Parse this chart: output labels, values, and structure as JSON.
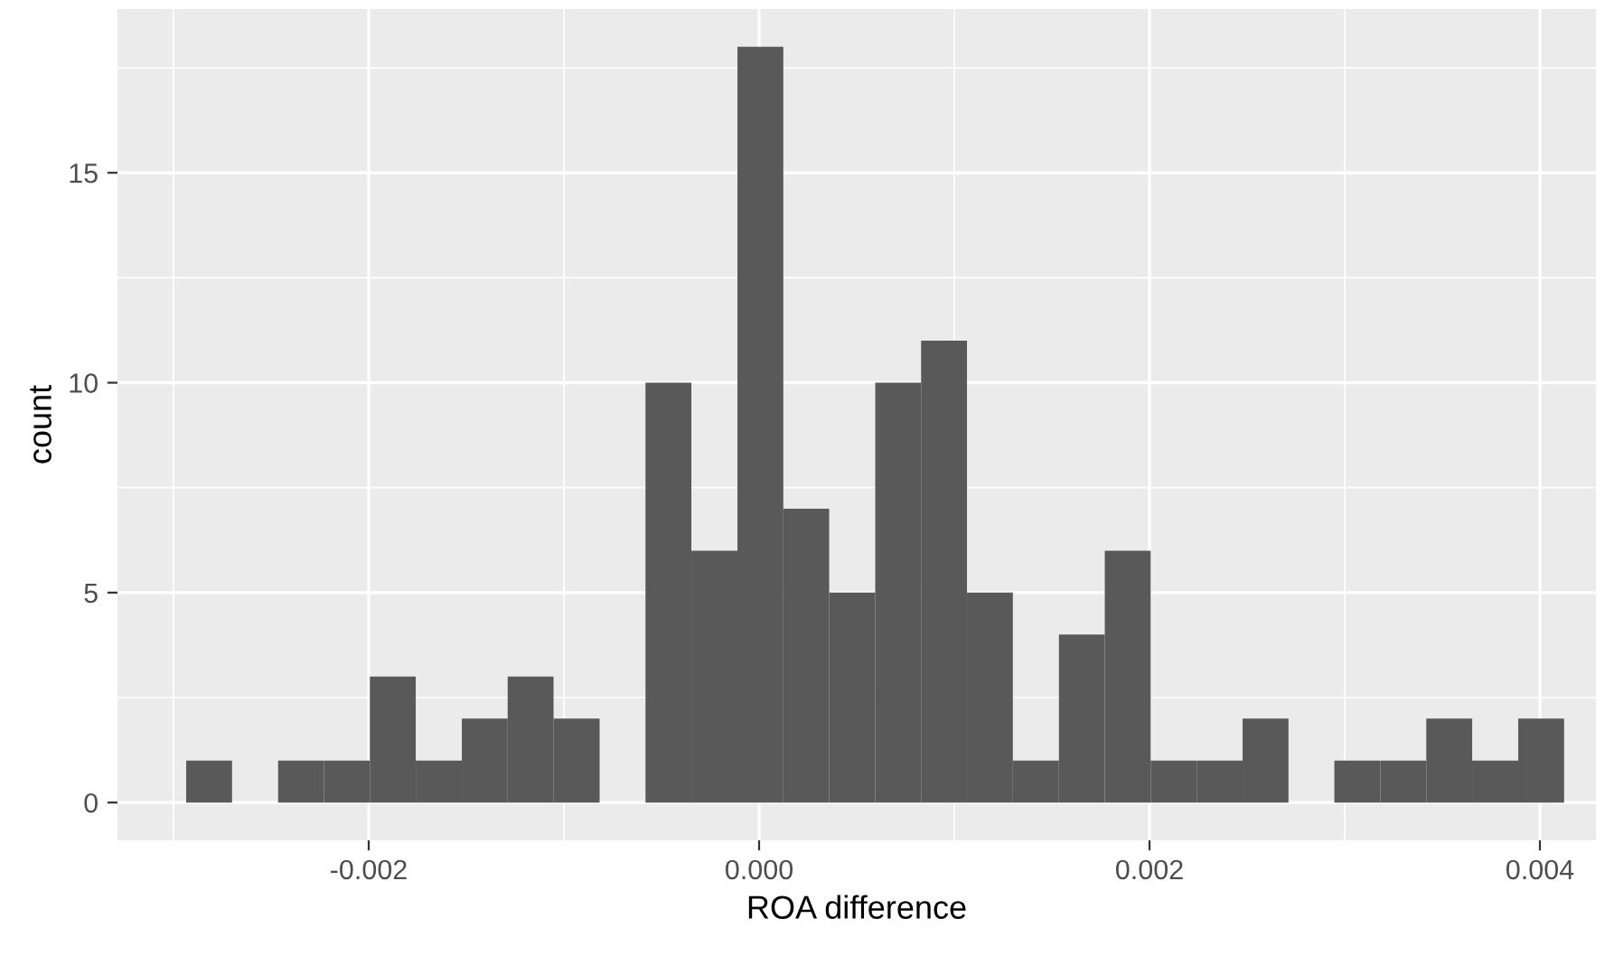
{
  "chart_data": {
    "type": "histogram",
    "xlabel": "ROA difference",
    "ylabel": "count",
    "bins": [
      -0.002935,
      -0.0027,
      -0.002464,
      -0.002229,
      -0.001994,
      -0.001759,
      -0.001523,
      -0.001288,
      -0.001053,
      -0.000817,
      -0.000582,
      -0.000347,
      -0.000111,
      0.000124,
      0.000359,
      0.000595,
      0.00083,
      0.001065,
      0.0013,
      0.001536,
      0.001771,
      0.002006,
      0.002242,
      0.002477,
      0.002712,
      0.002947,
      0.003183,
      0.003418,
      0.003653,
      0.003889,
      0.004124
    ],
    "values": [
      1,
      0,
      1,
      1,
      3,
      1,
      2,
      3,
      2,
      0,
      10,
      6,
      18,
      7,
      5,
      10,
      11,
      5,
      1,
      4,
      6,
      1,
      1,
      2,
      0,
      1,
      1,
      2,
      1,
      2
    ],
    "color": "#595959",
    "xlim": [
      -0.003287,
      0.004287
    ],
    "ylim": [
      -0.9,
      18.9
    ],
    "xticks": [
      {
        "value": -0.002,
        "label": "-0.002"
      },
      {
        "value": 0.0,
        "label": "0.000"
      },
      {
        "value": 0.002,
        "label": "0.002"
      },
      {
        "value": 0.004,
        "label": "0.004"
      }
    ],
    "yticks": [
      0,
      5,
      10,
      15
    ],
    "grid": true
  }
}
